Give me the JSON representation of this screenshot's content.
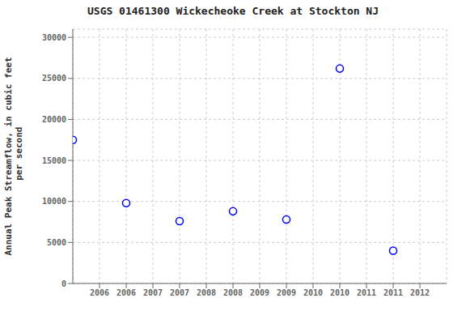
{
  "chart_data": {
    "type": "scatter",
    "title": "USGS 01461300 Wickecheoke Creek at Stockton NJ",
    "ylabel": "Annual Peak Streamflow, in cubic feet\n per second",
    "x": [
      2005.5,
      2006.5,
      2007.5,
      2008.5,
      2009.5,
      2010.5,
      2011.5
    ],
    "values": [
      17500,
      9800,
      7600,
      8800,
      7800,
      26200,
      4000
    ],
    "xlim": [
      2005.5,
      2012.5
    ],
    "ylim": [
      0,
      31000
    ],
    "xticks": [
      2006,
      {
        "value": 2006.5,
        "label": "2006"
      },
      2007,
      {
        "value": 2007.5,
        "label": "2007"
      },
      2008,
      {
        "value": 2008.5,
        "label": "2008"
      },
      2009,
      {
        "value": 2009.5,
        "label": "2009"
      },
      2010,
      {
        "value": 2010.5,
        "label": "2010"
      },
      2011,
      {
        "value": 2011.5,
        "label": "2011"
      },
      2012
    ],
    "yticks": [
      0,
      5000,
      10000,
      15000,
      20000,
      25000,
      30000
    ],
    "color": "blue",
    "marker": "circle",
    "grid": true
  }
}
